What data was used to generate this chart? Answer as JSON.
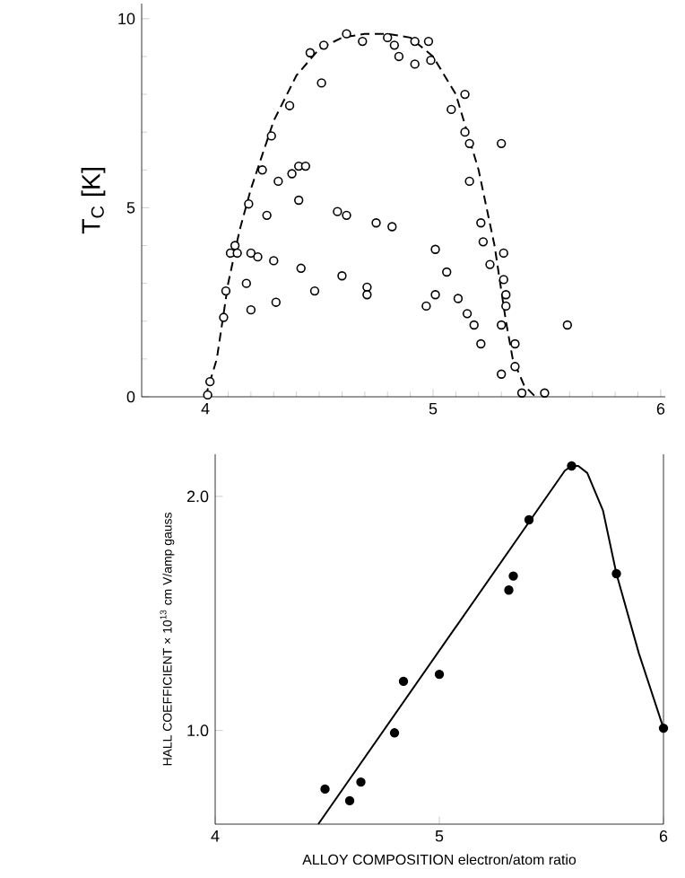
{
  "chart_data": [
    {
      "type": "scatter",
      "ylabel": "T$_{C}$ [K]",
      "xlim": [
        3.72,
        6.02
      ],
      "ylim": [
        0,
        10.4
      ],
      "xticks": [
        4,
        5,
        6
      ],
      "yticks": [
        0,
        5,
        10
      ],
      "marker": "circle",
      "series": [
        {
          "color": "#000000",
          "x": [
            4.01,
            4.02,
            4.08,
            4.09,
            4.11,
            4.13,
            4.14,
            4.19,
            4.18,
            4.2,
            4.2,
            4.23,
            4.25,
            4.27,
            4.29,
            4.3,
            4.31,
            4.32,
            4.37,
            4.38,
            4.41,
            4.41,
            4.44,
            4.42,
            4.46,
            4.48,
            4.51,
            4.52,
            4.58,
            4.6,
            4.62,
            4.62,
            4.69,
            4.71,
            4.71,
            4.75,
            4.8,
            4.82,
            4.83,
            4.85,
            4.92,
            4.92,
            4.98,
            4.99,
            4.97,
            5.01,
            5.01,
            5.06,
            5.08,
            5.11,
            5.14,
            5.14,
            5.15,
            5.16,
            5.16,
            5.18,
            5.21,
            5.21,
            5.22,
            5.25,
            5.3,
            5.3,
            5.31,
            5.31,
            5.32,
            5.32,
            5.3,
            5.36,
            5.36,
            5.39,
            5.49,
            5.59
          ],
          "values": [
            0.05,
            0.4,
            2.1,
            2.8,
            3.8,
            4.0,
            3.8,
            5.1,
            3.0,
            2.3,
            3.8,
            3.7,
            6.0,
            4.8,
            6.9,
            3.6,
            2.5,
            5.7,
            7.7,
            5.9,
            5.2,
            6.1,
            6.1,
            3.4,
            9.1,
            2.8,
            8.3,
            9.3,
            4.9,
            3.2,
            4.8,
            9.6,
            9.4,
            2.9,
            2.7,
            4.6,
            9.5,
            4.5,
            9.3,
            9.0,
            8.8,
            9.4,
            9.4,
            8.9,
            2.4,
            3.9,
            2.7,
            3.3,
            7.6,
            2.6,
            8.0,
            7.0,
            2.2,
            6.7,
            5.7,
            1.9,
            1.4,
            4.6,
            4.1,
            3.5,
            1.9,
            6.7,
            3.8,
            3.1,
            2.7,
            2.4,
            0.6,
            1.4,
            0.8,
            0.1,
            0.1,
            1.9
          ]
        },
        {
          "type": "line",
          "color": "#000000",
          "line_style": "dashed",
          "marker": "none",
          "x": [
            4.0,
            4.05,
            4.1,
            4.15,
            4.2,
            4.3,
            4.4,
            4.5,
            4.6,
            4.7,
            4.8,
            4.9,
            5.0,
            5.1,
            5.2,
            5.27,
            5.32,
            5.35,
            5.4,
            5.45
          ],
          "values": [
            0,
            1.0,
            3.0,
            4.4,
            5.5,
            7.3,
            8.5,
            9.2,
            9.5,
            9.6,
            9.6,
            9.5,
            9.0,
            8.0,
            6.0,
            4.0,
            2.0,
            1.0,
            0.3,
            0
          ]
        }
      ]
    },
    {
      "type": "scatter",
      "xlabel": "ALLOY COMPOSITION electron/atom ratio",
      "ylabel": "HALL COEFFICIENT × 10$^{13}$ cm V/amp gauss",
      "xlim": [
        4,
        6
      ],
      "ylim": [
        0.6,
        2.18
      ],
      "xticks": [
        4,
        5,
        6
      ],
      "yticks": [
        {
          "value": 1,
          "label": "1.0"
        },
        {
          "value": 2,
          "label": "2.0"
        }
      ],
      "marker": "circle",
      "series": [
        {
          "color": "#000000",
          "x": [
            4.49,
            4.6,
            4.65,
            4.8,
            4.84,
            5.0,
            5.31,
            5.33,
            5.4,
            5.59,
            5.79,
            6.0
          ],
          "values": [
            0.75,
            0.7,
            0.78,
            0.99,
            1.21,
            1.24,
            1.6,
            1.66,
            1.9,
            2.13,
            1.67,
            1.01
          ]
        },
        {
          "type": "line",
          "color": "#000000",
          "line_style": "solid",
          "marker": "none",
          "x": [
            4.46,
            5.56,
            5.59,
            5.62,
            5.66,
            5.73,
            5.79,
            5.89,
            6.0
          ],
          "values": [
            0.6,
            2.11,
            2.13,
            2.13,
            2.1,
            1.94,
            1.67,
            1.33,
            1.01
          ]
        }
      ]
    }
  ]
}
